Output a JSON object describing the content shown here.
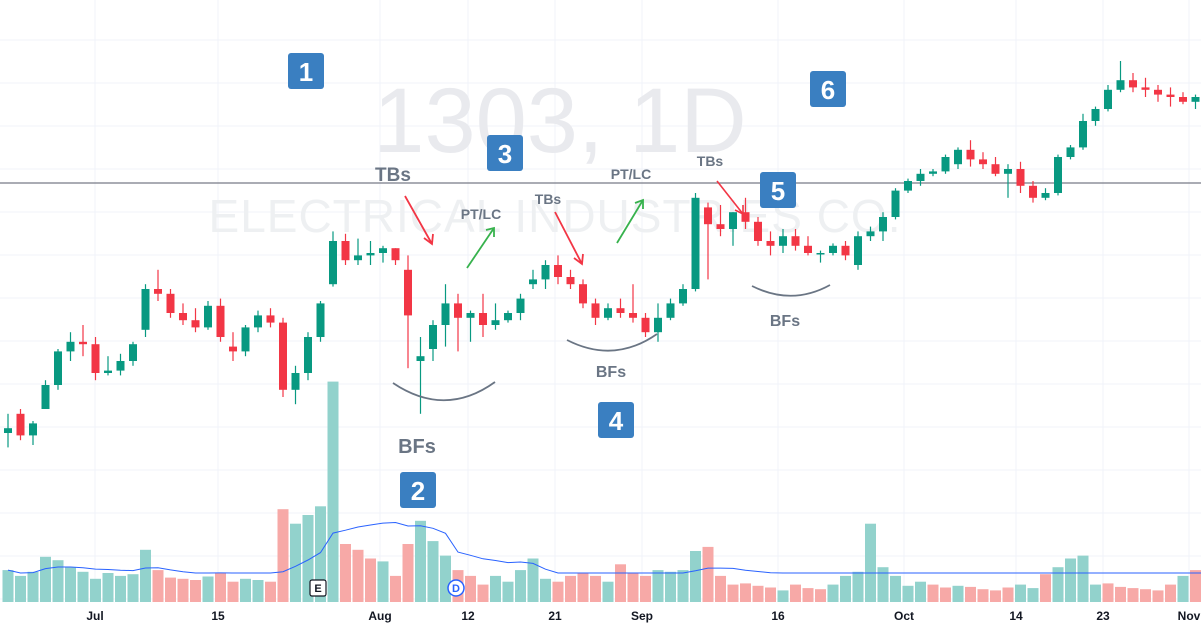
{
  "chart_data": {
    "type": "candlestick",
    "symbol_watermark": "1303, 1D",
    "name_watermark": "ELECTRICAL INDUSTRIES CO.",
    "x_tick_labels": [
      "Jul",
      "15",
      "Aug",
      "12",
      "21",
      "Sep",
      "16",
      "Oct",
      "14",
      "23",
      "Nov"
    ],
    "colors": {
      "up": "#089981",
      "down": "#f23645",
      "vol_up": "#92d2cc",
      "vol_down": "#f7a9a7",
      "ma": "#2962ff",
      "hline": "#787b86",
      "badge": "#3a7fc1"
    },
    "grid": true,
    "annotations": [
      {
        "text": "TBs"
      },
      {
        "text": "PT/LC"
      },
      {
        "text": "TBs"
      },
      {
        "text": "PT/LC"
      },
      {
        "text": "TBs"
      },
      {
        "text": "BFs"
      },
      {
        "text": "BFs"
      },
      {
        "text": "BFs"
      }
    ],
    "badges": [
      "1",
      "2",
      "3",
      "4",
      "5",
      "6"
    ],
    "events": [
      "E",
      "D"
    ],
    "candles": [
      [
        0.5,
        0.58,
        0.44,
        0.52
      ],
      [
        0.58,
        0.6,
        0.47,
        0.49
      ],
      [
        0.49,
        0.55,
        0.45,
        0.54
      ],
      [
        0.6,
        0.72,
        0.6,
        0.7
      ],
      [
        0.7,
        0.85,
        0.68,
        0.84
      ],
      [
        0.84,
        0.92,
        0.8,
        0.88
      ],
      [
        0.88,
        0.95,
        0.82,
        0.87
      ],
      [
        0.87,
        0.9,
        0.72,
        0.75
      ],
      [
        0.75,
        0.82,
        0.74,
        0.76
      ],
      [
        0.76,
        0.83,
        0.74,
        0.8
      ],
      [
        0.8,
        0.88,
        0.78,
        0.87
      ],
      [
        0.93,
        1.12,
        0.9,
        1.1
      ],
      [
        1.1,
        1.18,
        1.05,
        1.08
      ],
      [
        1.08,
        1.1,
        0.98,
        1.0
      ],
      [
        1.0,
        1.04,
        0.95,
        0.97
      ],
      [
        0.97,
        1.02,
        0.92,
        0.94
      ],
      [
        0.94,
        1.05,
        0.93,
        1.03
      ],
      [
        1.03,
        1.06,
        0.88,
        0.9
      ],
      [
        0.86,
        0.92,
        0.8,
        0.84
      ],
      [
        0.84,
        0.95,
        0.82,
        0.94
      ],
      [
        0.94,
        1.01,
        0.92,
        0.99
      ],
      [
        0.99,
        1.02,
        0.94,
        0.96
      ],
      [
        0.96,
        0.98,
        0.65,
        0.68
      ],
      [
        0.68,
        0.78,
        0.62,
        0.75
      ],
      [
        0.75,
        0.92,
        0.72,
        0.9
      ],
      [
        0.9,
        1.05,
        0.88,
        1.04
      ],
      [
        1.12,
        1.34,
        1.11,
        1.3
      ],
      [
        1.3,
        1.33,
        1.2,
        1.22
      ],
      [
        1.22,
        1.31,
        1.2,
        1.24
      ],
      [
        1.24,
        1.3,
        1.2,
        1.25
      ],
      [
        1.25,
        1.28,
        1.21,
        1.27
      ],
      [
        1.27,
        1.27,
        1.2,
        1.22
      ],
      [
        1.18,
        1.24,
        0.77,
        0.99
      ],
      [
        0.8,
        0.9,
        0.58,
        0.82
      ],
      [
        0.85,
        0.97,
        0.8,
        0.95
      ],
      [
        0.95,
        1.12,
        0.86,
        1.04
      ],
      [
        1.04,
        1.08,
        0.84,
        0.98
      ],
      [
        0.98,
        1.01,
        0.88,
        1.0
      ],
      [
        1.0,
        1.08,
        0.9,
        0.95
      ],
      [
        0.95,
        1.04,
        0.93,
        0.97
      ],
      [
        0.97,
        1.01,
        0.96,
        1.0
      ],
      [
        1.0,
        1.08,
        0.97,
        1.06
      ],
      [
        1.12,
        1.18,
        1.1,
        1.14
      ],
      [
        1.14,
        1.22,
        1.1,
        1.2
      ],
      [
        1.2,
        1.24,
        1.12,
        1.15
      ],
      [
        1.15,
        1.18,
        1.1,
        1.12
      ],
      [
        1.12,
        1.14,
        1.02,
        1.04
      ],
      [
        1.04,
        1.06,
        0.95,
        0.98
      ],
      [
        0.98,
        1.04,
        0.97,
        1.02
      ],
      [
        1.02,
        1.06,
        0.98,
        1.0
      ],
      [
        1.0,
        1.12,
        0.96,
        0.98
      ],
      [
        0.98,
        1.0,
        0.9,
        0.92
      ],
      [
        0.92,
        1.04,
        0.88,
        0.98
      ],
      [
        0.98,
        1.06,
        0.97,
        1.04
      ],
      [
        1.04,
        1.12,
        1.03,
        1.1
      ],
      [
        1.1,
        1.5,
        1.09,
        1.48
      ],
      [
        1.44,
        1.46,
        1.14,
        1.37
      ],
      [
        1.37,
        1.45,
        1.32,
        1.35
      ],
      [
        1.35,
        1.42,
        1.28,
        1.42
      ],
      [
        1.42,
        1.48,
        1.35,
        1.38
      ],
      [
        1.38,
        1.4,
        1.28,
        1.3
      ],
      [
        1.3,
        1.34,
        1.24,
        1.28
      ],
      [
        1.28,
        1.35,
        1.25,
        1.32
      ],
      [
        1.32,
        1.35,
        1.26,
        1.28
      ],
      [
        1.28,
        1.32,
        1.24,
        1.25
      ],
      [
        1.25,
        1.26,
        1.21,
        1.25
      ],
      [
        1.25,
        1.29,
        1.24,
        1.28
      ],
      [
        1.28,
        1.3,
        1.22,
        1.24
      ],
      [
        1.2,
        1.34,
        1.18,
        1.32
      ],
      [
        1.32,
        1.36,
        1.3,
        1.34
      ],
      [
        1.34,
        1.42,
        1.3,
        1.4
      ],
      [
        1.4,
        1.52,
        1.39,
        1.51
      ],
      [
        1.51,
        1.56,
        1.5,
        1.55
      ],
      [
        1.55,
        1.6,
        1.53,
        1.58
      ],
      [
        1.58,
        1.6,
        1.57,
        1.59
      ],
      [
        1.59,
        1.66,
        1.58,
        1.65
      ],
      [
        1.62,
        1.69,
        1.6,
        1.68
      ],
      [
        1.68,
        1.72,
        1.61,
        1.64
      ],
      [
        1.64,
        1.67,
        1.6,
        1.62
      ],
      [
        1.62,
        1.65,
        1.57,
        1.58
      ],
      [
        1.58,
        1.62,
        1.48,
        1.6
      ],
      [
        1.6,
        1.63,
        1.5,
        1.53
      ],
      [
        1.53,
        1.55,
        1.46,
        1.48
      ],
      [
        1.48,
        1.52,
        1.47,
        1.5
      ],
      [
        1.5,
        1.66,
        1.49,
        1.65
      ],
      [
        1.65,
        1.7,
        1.64,
        1.69
      ],
      [
        1.69,
        1.83,
        1.68,
        1.8
      ],
      [
        1.8,
        1.86,
        1.78,
        1.85
      ],
      [
        1.85,
        1.95,
        1.84,
        1.93
      ],
      [
        1.93,
        2.05,
        1.92,
        1.97
      ],
      [
        1.97,
        2.0,
        1.92,
        1.94
      ],
      [
        1.94,
        1.98,
        1.9,
        1.93
      ],
      [
        1.93,
        1.95,
        1.88,
        1.91
      ],
      [
        1.91,
        1.94,
        1.86,
        1.9
      ],
      [
        1.9,
        1.92,
        1.87,
        1.88
      ],
      [
        1.88,
        1.91,
        1.85,
        1.9
      ],
      [
        1.87,
        1.94,
        1.85,
        1.92
      ],
      [
        1.92,
        1.96,
        1.86,
        1.88
      ],
      [
        1.88,
        1.97,
        1.86,
        1.95
      ],
      [
        1.95,
        1.99,
        1.93,
        1.98
      ],
      [
        1.98,
        2.0,
        1.93,
        2.0
      ],
      [
        2.0,
        2.04,
        1.9,
        1.93
      ],
      [
        1.93,
        2.03,
        1.92,
        2.01
      ],
      [
        2.01,
        2.06,
        1.88,
        1.9
      ],
      [
        1.9,
        2.08,
        1.88,
        2.05
      ]
    ],
    "volumes": [
      [
        0.55,
        "u"
      ],
      [
        0.45,
        "u"
      ],
      [
        0.52,
        "u"
      ],
      [
        0.78,
        "u"
      ],
      [
        0.72,
        "u"
      ],
      [
        0.6,
        "u"
      ],
      [
        0.52,
        "u"
      ],
      [
        0.4,
        "u"
      ],
      [
        0.5,
        "u"
      ],
      [
        0.45,
        "u"
      ],
      [
        0.48,
        "u"
      ],
      [
        0.9,
        "u"
      ],
      [
        0.55,
        "d"
      ],
      [
        0.42,
        "d"
      ],
      [
        0.4,
        "d"
      ],
      [
        0.38,
        "d"
      ],
      [
        0.44,
        "u"
      ],
      [
        0.5,
        "d"
      ],
      [
        0.35,
        "d"
      ],
      [
        0.4,
        "u"
      ],
      [
        0.38,
        "u"
      ],
      [
        0.35,
        "d"
      ],
      [
        1.6,
        "d"
      ],
      [
        1.35,
        "u"
      ],
      [
        1.5,
        "u"
      ],
      [
        1.65,
        "u"
      ],
      [
        3.8,
        "u"
      ],
      [
        1.0,
        "d"
      ],
      [
        0.9,
        "d"
      ],
      [
        0.75,
        "d"
      ],
      [
        0.7,
        "u"
      ],
      [
        0.45,
        "d"
      ],
      [
        1.0,
        "d"
      ],
      [
        1.4,
        "u"
      ],
      [
        1.05,
        "u"
      ],
      [
        0.8,
        "u"
      ],
      [
        0.55,
        "d"
      ],
      [
        0.45,
        "d"
      ],
      [
        0.3,
        "d"
      ],
      [
        0.45,
        "u"
      ],
      [
        0.35,
        "u"
      ],
      [
        0.55,
        "u"
      ],
      [
        0.75,
        "u"
      ],
      [
        0.4,
        "u"
      ],
      [
        0.35,
        "d"
      ],
      [
        0.45,
        "d"
      ],
      [
        0.5,
        "d"
      ],
      [
        0.45,
        "d"
      ],
      [
        0.35,
        "u"
      ],
      [
        0.65,
        "d"
      ],
      [
        0.5,
        "d"
      ],
      [
        0.45,
        "d"
      ],
      [
        0.55,
        "u"
      ],
      [
        0.52,
        "u"
      ],
      [
        0.55,
        "u"
      ],
      [
        0.88,
        "u"
      ],
      [
        0.95,
        "d"
      ],
      [
        0.45,
        "d"
      ],
      [
        0.3,
        "d"
      ],
      [
        0.32,
        "d"
      ],
      [
        0.28,
        "d"
      ],
      [
        0.25,
        "d"
      ],
      [
        0.2,
        "u"
      ],
      [
        0.3,
        "d"
      ],
      [
        0.24,
        "d"
      ],
      [
        0.22,
        "d"
      ],
      [
        0.3,
        "u"
      ],
      [
        0.45,
        "u"
      ],
      [
        0.52,
        "u"
      ],
      [
        1.35,
        "u"
      ],
      [
        0.6,
        "u"
      ],
      [
        0.45,
        "u"
      ],
      [
        0.28,
        "u"
      ],
      [
        0.35,
        "u"
      ],
      [
        0.3,
        "d"
      ],
      [
        0.25,
        "d"
      ],
      [
        0.28,
        "u"
      ],
      [
        0.26,
        "d"
      ],
      [
        0.22,
        "d"
      ],
      [
        0.2,
        "d"
      ],
      [
        0.25,
        "d"
      ],
      [
        0.3,
        "u"
      ],
      [
        0.24,
        "u"
      ],
      [
        0.48,
        "d"
      ],
      [
        0.6,
        "u"
      ],
      [
        0.75,
        "u"
      ],
      [
        0.8,
        "u"
      ],
      [
        0.3,
        "u"
      ],
      [
        0.32,
        "d"
      ],
      [
        0.26,
        "d"
      ],
      [
        0.24,
        "d"
      ],
      [
        0.22,
        "d"
      ],
      [
        0.2,
        "d"
      ],
      [
        0.3,
        "d"
      ],
      [
        0.45,
        "u"
      ],
      [
        0.55,
        "d"
      ],
      [
        0.35,
        "u"
      ],
      [
        0.26,
        "u"
      ],
      [
        0.32,
        "u"
      ],
      [
        0.62,
        "d"
      ],
      [
        0.65,
        "u"
      ],
      [
        0.3,
        "d"
      ],
      [
        0.35,
        "u"
      ],
      [
        0.85,
        "u"
      ],
      [
        0.4,
        "u"
      ]
    ]
  }
}
